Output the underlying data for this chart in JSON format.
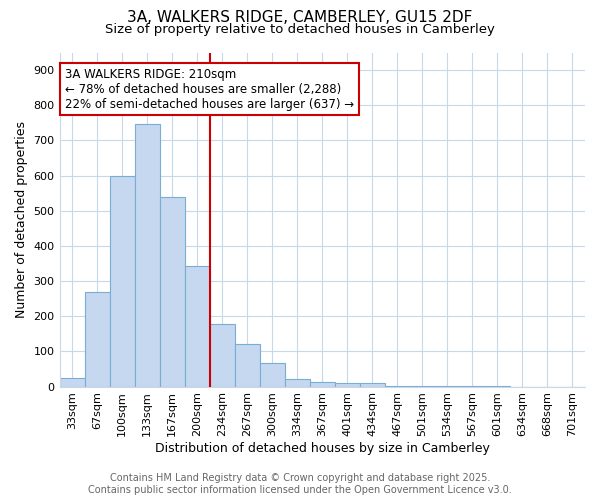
{
  "title_line1": "3A, WALKERS RIDGE, CAMBERLEY, GU15 2DF",
  "title_line2": "Size of property relative to detached houses in Camberley",
  "xlabel": "Distribution of detached houses by size in Camberley",
  "ylabel": "Number of detached properties",
  "categories": [
    "33sqm",
    "67sqm",
    "100sqm",
    "133sqm",
    "167sqm",
    "200sqm",
    "234sqm",
    "267sqm",
    "300sqm",
    "334sqm",
    "367sqm",
    "401sqm",
    "434sqm",
    "467sqm",
    "501sqm",
    "534sqm",
    "567sqm",
    "601sqm",
    "634sqm",
    "668sqm",
    "701sqm"
  ],
  "values": [
    25,
    270,
    598,
    748,
    538,
    342,
    178,
    120,
    67,
    22,
    13,
    11,
    9,
    3,
    3,
    2,
    1,
    1,
    0,
    0,
    0
  ],
  "bar_color": "#c5d8f0",
  "bar_edge_color": "#7aadd4",
  "red_line_x": 5.5,
  "red_line_label": "3A WALKERS RIDGE: 210sqm",
  "annotation_line2": "← 78% of detached houses are smaller (2,288)",
  "annotation_line3": "22% of semi-detached houses are larger (637) →",
  "annotation_box_color": "#ffffff",
  "annotation_box_edge": "#cc0000",
  "red_line_color": "#cc0000",
  "ylim": [
    0,
    950
  ],
  "yticks": [
    0,
    100,
    200,
    300,
    400,
    500,
    600,
    700,
    800,
    900
  ],
  "footer_line1": "Contains HM Land Registry data © Crown copyright and database right 2025.",
  "footer_line2": "Contains public sector information licensed under the Open Government Licence v3.0.",
  "bg_color": "#ffffff",
  "plot_bg_color": "#ffffff",
  "grid_color": "#c8d8e8",
  "title_fontsize": 11,
  "subtitle_fontsize": 9.5,
  "axis_label_fontsize": 9,
  "tick_fontsize": 8,
  "footer_fontsize": 7,
  "annotation_fontsize": 8.5
}
